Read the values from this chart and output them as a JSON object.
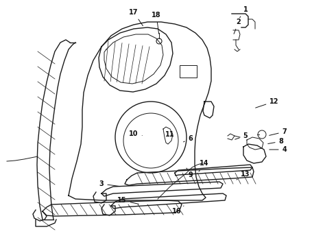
{
  "bg_color": "#ffffff",
  "line_color": "#1a1a1a",
  "label_color": "#111111",
  "figsize": [
    4.9,
    3.6
  ],
  "dpi": 100,
  "labels_info": [
    [
      "17",
      195,
      18,
      210,
      40
    ],
    [
      "18",
      228,
      22,
      232,
      52
    ],
    [
      "1",
      358,
      14,
      348,
      28
    ],
    [
      "2",
      348,
      32,
      340,
      52
    ],
    [
      "12",
      400,
      148,
      370,
      158
    ],
    [
      "5",
      358,
      198,
      340,
      204
    ],
    [
      "7",
      415,
      192,
      390,
      198
    ],
    [
      "8",
      410,
      206,
      388,
      210
    ],
    [
      "4",
      415,
      218,
      390,
      218
    ],
    [
      "6",
      278,
      202,
      265,
      208
    ],
    [
      "10",
      195,
      195,
      210,
      198
    ],
    [
      "11",
      248,
      196,
      255,
      200
    ],
    [
      "9",
      278,
      255,
      272,
      245
    ],
    [
      "3",
      148,
      268,
      178,
      272
    ],
    [
      "14",
      298,
      238,
      290,
      250
    ],
    [
      "13",
      358,
      254,
      345,
      262
    ],
    [
      "15",
      178,
      292,
      205,
      298
    ],
    [
      "16",
      258,
      308,
      268,
      300
    ]
  ]
}
